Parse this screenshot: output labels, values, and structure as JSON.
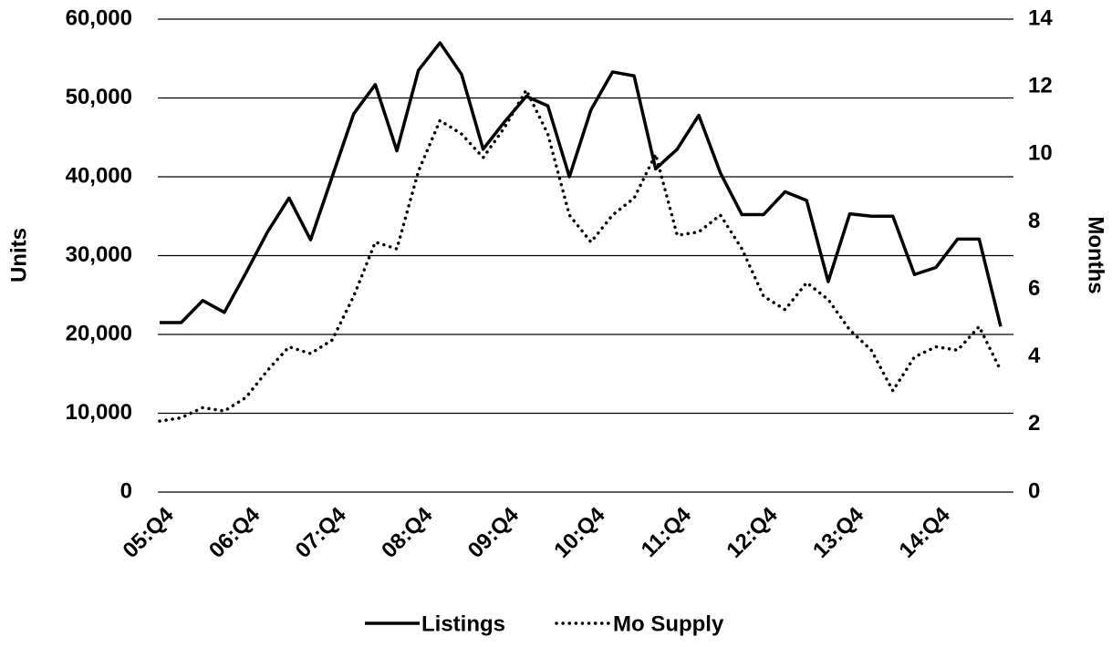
{
  "chart_data": {
    "type": "line",
    "y_label": "Units",
    "y2_label": "Months",
    "categories": [
      "05:Q4",
      null,
      null,
      null,
      "06:Q4",
      null,
      null,
      null,
      "07:Q4",
      null,
      null,
      null,
      "08:Q4",
      null,
      null,
      null,
      "09:Q4",
      null,
      null,
      null,
      "10:Q4",
      null,
      null,
      null,
      "11:Q4",
      null,
      null,
      null,
      "12:Q4",
      null,
      null,
      null,
      "13:Q4",
      null,
      null,
      null,
      "14:Q4",
      null,
      null,
      null
    ],
    "series": [
      {
        "name": "Listings",
        "color": "#000000",
        "style": "solid",
        "values": [
          21500,
          21500,
          24300,
          22800,
          27800,
          33000,
          37300,
          32000,
          40000,
          48000,
          51700,
          43300,
          53500,
          57000,
          53000,
          43500,
          47000,
          50200,
          49000,
          40000,
          48500,
          53300,
          52800,
          41000,
          43500,
          47800,
          40500,
          35200,
          35200,
          38100,
          37000,
          26700,
          35300,
          35000,
          35000,
          27600,
          28500,
          32100,
          32100,
          21000
        ]
      },
      {
        "name": "Mo Supply",
        "color": "#000000",
        "style": "dotted",
        "axis": "y2",
        "values": [
          2.1,
          2.2,
          2.5,
          2.4,
          2.8,
          3.6,
          4.3,
          4.1,
          4.5,
          5.8,
          7.4,
          7.2,
          9.5,
          11.0,
          10.6,
          9.9,
          10.8,
          11.9,
          10.6,
          8.2,
          7.4,
          8.2,
          8.7,
          10.0,
          7.6,
          7.7,
          8.2,
          7.2,
          5.8,
          5.4,
          6.2,
          5.7,
          4.8,
          4.2,
          3.0,
          4.0,
          4.3,
          4.2,
          4.9,
          3.6
        ]
      }
    ],
    "ylim": [
      0,
      60000
    ],
    "yticks": [
      0,
      {
        "value": 10000,
        "label": "10,000"
      },
      {
        "value": 20000,
        "label": "20,000"
      },
      {
        "value": 30000,
        "label": "30,000"
      },
      {
        "value": 40000,
        "label": "40,000"
      },
      {
        "value": 50000,
        "label": "50,000"
      },
      {
        "value": 60000,
        "label": "60,000"
      }
    ],
    "y2lim": [
      0,
      14
    ],
    "y2ticks": [
      0,
      2,
      4,
      6,
      8,
      10,
      12,
      14
    ],
    "grid": true,
    "legend": "bottom"
  }
}
